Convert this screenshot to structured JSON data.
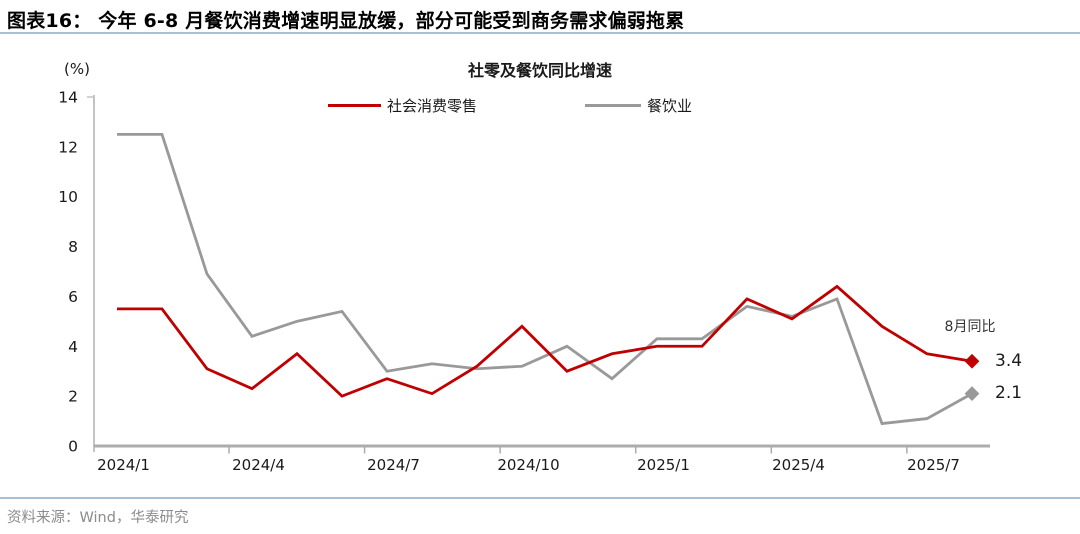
{
  "header": {
    "title": "图表16：  今年 6-8 月餐饮消费增速明显放缓，部分可能受到商务需求偏弱拖累"
  },
  "chart": {
    "title": "社零及餐饮同比增速",
    "axis_unit": "(%)",
    "annotation_title": "8月同比"
  },
  "chart_data": {
    "type": "line",
    "title": "社零及餐饮同比增速",
    "ylabel": "(%)",
    "ylim": [
      0,
      14
    ],
    "y_ticks": [
      0,
      2,
      4,
      6,
      8,
      10,
      12,
      14
    ],
    "grid": false,
    "legend_position": "top",
    "x": [
      "2024/1",
      "2024/2",
      "2024/3",
      "2024/4",
      "2024/5",
      "2024/6",
      "2024/7",
      "2024/8",
      "2024/9",
      "2024/10",
      "2024/11",
      "2024/12",
      "2025/1",
      "2025/2",
      "2025/3",
      "2025/4",
      "2025/5",
      "2025/6",
      "2025/7",
      "2025/8"
    ],
    "x_tick_labels": [
      "2024/1",
      "2024/4",
      "2024/7",
      "2024/10",
      "2025/1",
      "2025/4",
      "2025/7"
    ],
    "x_tick_indices": [
      0,
      3,
      6,
      9,
      12,
      15,
      18
    ],
    "series": [
      {
        "name": "社会消费零售",
        "color": "#c00000",
        "values": [
          5.5,
          5.5,
          3.1,
          2.3,
          3.7,
          2.0,
          2.7,
          2.1,
          3.2,
          4.8,
          3.0,
          3.7,
          4.0,
          4.0,
          5.9,
          5.1,
          6.4,
          4.8,
          3.7,
          3.4
        ],
        "end_label": "3.4",
        "end_marker": "diamond"
      },
      {
        "name": "餐饮业",
        "color": "#999999",
        "values": [
          12.5,
          12.5,
          6.9,
          4.4,
          5.0,
          5.4,
          3.0,
          3.3,
          3.1,
          3.2,
          4.0,
          2.7,
          4.3,
          4.3,
          5.6,
          5.2,
          5.9,
          0.9,
          1.1,
          2.1
        ],
        "end_label": "2.1",
        "end_marker": "diamond"
      }
    ],
    "annotation": "8月同比"
  },
  "footer": {
    "source": "资料来源：Wind，华泰研究"
  },
  "colors": {
    "series1": "#c00000",
    "series2": "#999999",
    "x_axis": "#acacac",
    "y_axis": "#c3c3c3",
    "rule_blue": "#a9bfd9",
    "text": "#1a1a1a",
    "muted": "#8c8c8c"
  }
}
